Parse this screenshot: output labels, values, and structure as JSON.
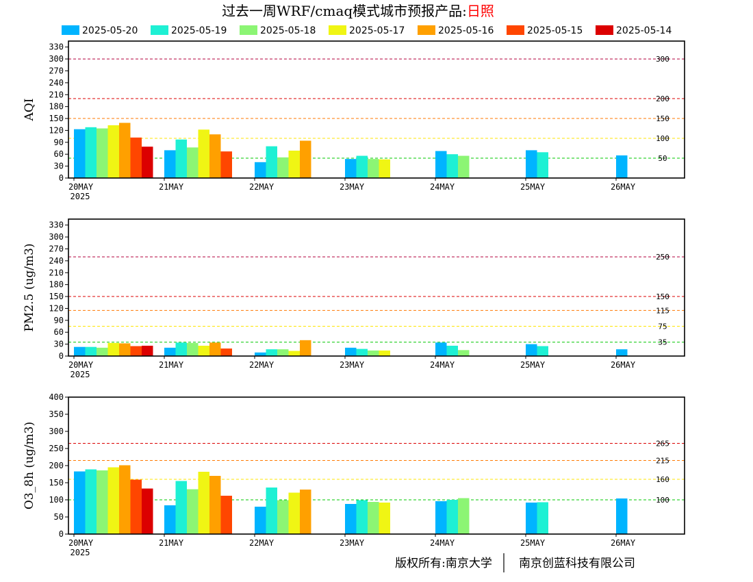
{
  "header": {
    "title_prefix": "过去一周WRF/cmaq模式城市预报产品:",
    "city": "日照",
    "city_color": "#ff0000"
  },
  "legend": [
    {
      "label": "2025-05-20",
      "color": "#00b4ff"
    },
    {
      "label": "2025-05-19",
      "color": "#1ef0d4"
    },
    {
      "label": "2025-05-18",
      "color": "#8cf574"
    },
    {
      "label": "2025-05-17",
      "color": "#f0f514"
    },
    {
      "label": "2025-05-16",
      "color": "#ffa000"
    },
    {
      "label": "2025-05-15",
      "color": "#ff4600"
    },
    {
      "label": "2025-05-14",
      "color": "#dc0000"
    }
  ],
  "footer": {
    "left": "版权所有:南京大学",
    "right": "南京创蓝科技有限公司"
  },
  "chart_data": [
    {
      "type": "bar",
      "ylabel": "AQI",
      "categories": [
        "20MAY",
        "21MAY",
        "22MAY",
        "23MAY",
        "24MAY",
        "25MAY",
        "26MAY"
      ],
      "year_label": "2025",
      "ylim": [
        0,
        345
      ],
      "yticks": [
        0,
        30,
        45,
        60,
        75,
        90,
        105,
        120,
        135,
        150,
        165,
        180,
        195,
        210,
        225,
        240,
        255,
        270,
        285,
        300,
        315,
        330
      ],
      "ytick_labels": [
        "0",
        "30",
        "60",
        "90",
        "120",
        "150",
        "180",
        "210",
        "240",
        "270",
        "300",
        "330"
      ],
      "ytick_values": [
        0,
        30,
        60,
        90,
        120,
        150,
        180,
        210,
        240,
        270,
        300,
        330
      ],
      "thresholds": [
        {
          "value": 300,
          "label": "300",
          "color": "#b4003c"
        },
        {
          "value": 200,
          "label": "200",
          "color": "#dc0000"
        },
        {
          "value": 150,
          "label": "150",
          "color": "#ff7800"
        },
        {
          "value": 100,
          "label": "100",
          "color": "#ffe600"
        },
        {
          "value": 50,
          "label": "50",
          "color": "#00c800"
        }
      ],
      "series": [
        {
          "name": "2025-05-20",
          "values": [
            123,
            70,
            40,
            48,
            68,
            70,
            57
          ]
        },
        {
          "name": "2025-05-19",
          "values": [
            128,
            97,
            80,
            56,
            60,
            65,
            null
          ]
        },
        {
          "name": "2025-05-18",
          "values": [
            125,
            77,
            52,
            48,
            56,
            null,
            null
          ]
        },
        {
          "name": "2025-05-17",
          "values": [
            133,
            122,
            69,
            47,
            null,
            null,
            null
          ]
        },
        {
          "name": "2025-05-16",
          "values": [
            139,
            110,
            94,
            null,
            null,
            null,
            null
          ]
        },
        {
          "name": "2025-05-15",
          "values": [
            102,
            67,
            null,
            null,
            null,
            null,
            null
          ]
        },
        {
          "name": "2025-05-14",
          "values": [
            79,
            null,
            null,
            null,
            null,
            null,
            null
          ]
        }
      ]
    },
    {
      "type": "bar",
      "ylabel": "PM2.5 (ug/m3)",
      "categories": [
        "20MAY",
        "21MAY",
        "22MAY",
        "23MAY",
        "24MAY",
        "25MAY",
        "26MAY"
      ],
      "year_label": "2025",
      "ylim": [
        0,
        345
      ],
      "ytick_values": [
        0,
        30,
        60,
        90,
        120,
        150,
        180,
        210,
        240,
        270,
        300,
        330
      ],
      "ytick_labels": [
        "0",
        "30",
        "60",
        "90",
        "120",
        "150",
        "180",
        "210",
        "240",
        "270",
        "300",
        "330"
      ],
      "thresholds": [
        {
          "value": 250,
          "label": "250",
          "color": "#b4003c"
        },
        {
          "value": 150,
          "label": "150",
          "color": "#dc0000"
        },
        {
          "value": 115,
          "label": "115",
          "color": "#ff7800"
        },
        {
          "value": 75,
          "label": "75",
          "color": "#ffe600"
        },
        {
          "value": 35,
          "label": "35",
          "color": "#00c800"
        }
      ],
      "series": [
        {
          "name": "2025-05-20",
          "values": [
            23,
            21,
            9,
            21,
            34,
            30,
            17
          ]
        },
        {
          "name": "2025-05-19",
          "values": [
            23,
            34,
            17,
            18,
            26,
            25,
            null
          ]
        },
        {
          "name": "2025-05-18",
          "values": [
            21,
            33,
            17,
            14,
            15,
            null,
            null
          ]
        },
        {
          "name": "2025-05-17",
          "values": [
            33,
            26,
            13,
            14,
            null,
            null,
            null
          ]
        },
        {
          "name": "2025-05-16",
          "values": [
            32,
            34,
            40,
            null,
            null,
            null,
            null
          ]
        },
        {
          "name": "2025-05-15",
          "values": [
            25,
            19,
            null,
            null,
            null,
            null,
            null
          ]
        },
        {
          "name": "2025-05-14",
          "values": [
            26,
            null,
            null,
            null,
            null,
            null,
            null
          ]
        }
      ]
    },
    {
      "type": "bar",
      "ylabel": "O3_8h (ug/m3)",
      "categories": [
        "20MAY",
        "21MAY",
        "22MAY",
        "23MAY",
        "24MAY",
        "25MAY",
        "26MAY"
      ],
      "year_label": "2025",
      "ylim": [
        0,
        400
      ],
      "ytick_values": [
        0,
        50,
        100,
        150,
        200,
        250,
        300,
        350,
        400
      ],
      "ytick_labels": [
        "0",
        "50",
        "100",
        "150",
        "200",
        "250",
        "300",
        "350",
        "400"
      ],
      "thresholds": [
        {
          "value": 265,
          "label": "265",
          "color": "#dc0000"
        },
        {
          "value": 215,
          "label": "215",
          "color": "#ff7800"
        },
        {
          "value": 160,
          "label": "160",
          "color": "#ffe600"
        },
        {
          "value": 100,
          "label": "100",
          "color": "#00c800"
        }
      ],
      "series": [
        {
          "name": "2025-05-20",
          "values": [
            183,
            84,
            80,
            88,
            96,
            92,
            104
          ]
        },
        {
          "name": "2025-05-19",
          "values": [
            189,
            155,
            136,
            99,
            100,
            93,
            null
          ]
        },
        {
          "name": "2025-05-18",
          "values": [
            186,
            131,
            99,
            94,
            105,
            null,
            null
          ]
        },
        {
          "name": "2025-05-17",
          "values": [
            195,
            182,
            121,
            92,
            null,
            null,
            null
          ]
        },
        {
          "name": "2025-05-16",
          "values": [
            201,
            170,
            130,
            null,
            null,
            null,
            null
          ]
        },
        {
          "name": "2025-05-15",
          "values": [
            159,
            112,
            null,
            null,
            null,
            null,
            null
          ]
        },
        {
          "name": "2025-05-14",
          "values": [
            133,
            null,
            null,
            null,
            null,
            null,
            null
          ]
        }
      ]
    }
  ]
}
